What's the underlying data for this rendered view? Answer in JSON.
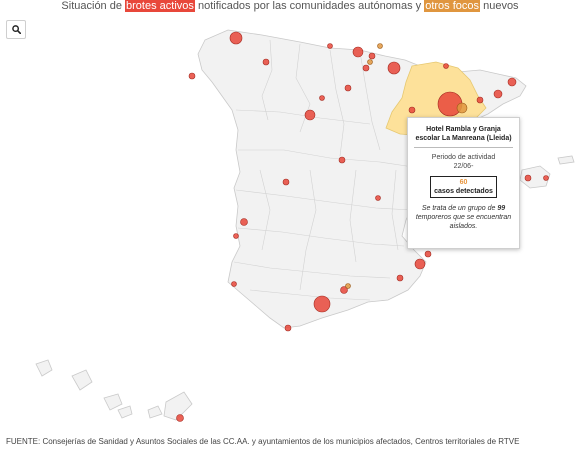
{
  "title": {
    "prefix": "Situación de ",
    "active": "brotes activos",
    "middle": " notificados por las comunidades autónomas y ",
    "other": "otros focos",
    "suffix": " nuevos"
  },
  "colors": {
    "active": "#e8473a",
    "other": "#e0963f",
    "region_highlight": "#fde19a",
    "land": "#f2f2f2",
    "border": "#c9c9c9"
  },
  "search_icon": "search-icon",
  "tooltip": {
    "name": "Hotel Rambla y Granja escolar La Manreana (Lleida)",
    "period_label": "Periodo de actividad",
    "period_value": "22/06-",
    "cases_value": "60",
    "cases_label": "casos detectados",
    "note_prefix": "Se trata de un grupo de ",
    "note_number": "99",
    "note_suffix": " temporeros que se encuentran aislados."
  },
  "source": "FUENTE: Consejerías de Sanidad y Asuntos Sociales de las CC.AA. y ayuntamientos de los municipios afectados, Centros territoriales de RTVE"
}
